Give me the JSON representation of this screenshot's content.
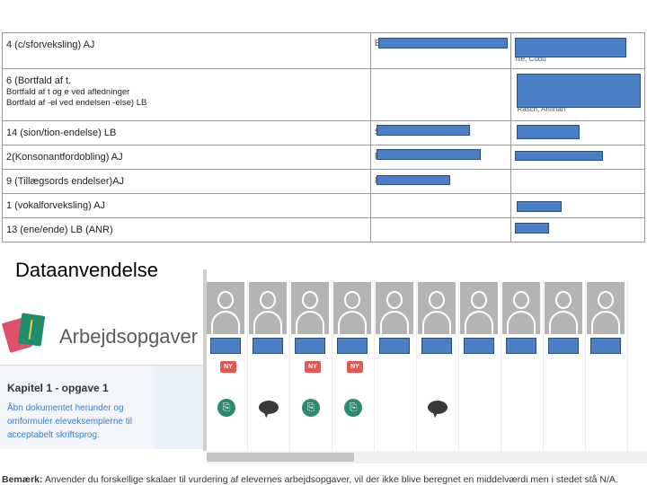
{
  "table": {
    "rows": [
      {
        "label": "4 (c/sforveksling) AJ",
        "sub": [],
        "c2_text": "E",
        "c3_text": "hle, Cudu"
      },
      {
        "label": "6 (Bortfald af t.",
        "sub": [
          "Bortfald af t og e ved afledninger",
          "Bortfald af -el ved endelsen -else) LB"
        ],
        "c2_text": "",
        "c3_text": "Rasch, Anfinan"
      },
      {
        "label": "14 (sion/tion-endelse) LB",
        "sub": [],
        "c2_text": "S",
        "c3_text": ""
      },
      {
        "label": "2(Konsonantfordobling) AJ",
        "sub": [],
        "c2_text": "F",
        "c3_text": ""
      },
      {
        "label": "9 (Tillægsords endelser)AJ",
        "sub": [],
        "c2_text": "I",
        "c3_text": ""
      },
      {
        "label": "1 (vokalforveksling) AJ",
        "sub": [],
        "c2_text": "",
        "c3_text": ""
      },
      {
        "label": "13 (ene/ende) LB (ANR)",
        "sub": [],
        "c2_text": "",
        "c3_text": ""
      }
    ]
  },
  "heading": "Dataanvendelse",
  "app": {
    "title": "Arbejdsopgaver",
    "task_title": "Kapitel 1 - opgave 1",
    "task_desc": "Åbn dokumentet herunder og omformuler eleveksemplerne til acceptabelt skriftsprog.",
    "badge": "NY",
    "students": [
      {
        "ny": true,
        "icon": "clip"
      },
      {
        "ny": false,
        "icon": "chat"
      },
      {
        "ny": true,
        "icon": "clip"
      },
      {
        "ny": true,
        "icon": "clip"
      },
      {
        "ny": false,
        "icon": ""
      },
      {
        "ny": false,
        "icon": "chat"
      },
      {
        "ny": false,
        "icon": ""
      },
      {
        "ny": false,
        "icon": ""
      },
      {
        "ny": false,
        "icon": ""
      },
      {
        "ny": false,
        "icon": ""
      }
    ]
  },
  "note": {
    "label": "Bemærk:",
    "text": "Anvender du forskellige skalaer til vurdering af elevernes arbejdsopgaver, vil der ikke blive beregnet en middelværdi men i stedet stå N/A."
  }
}
